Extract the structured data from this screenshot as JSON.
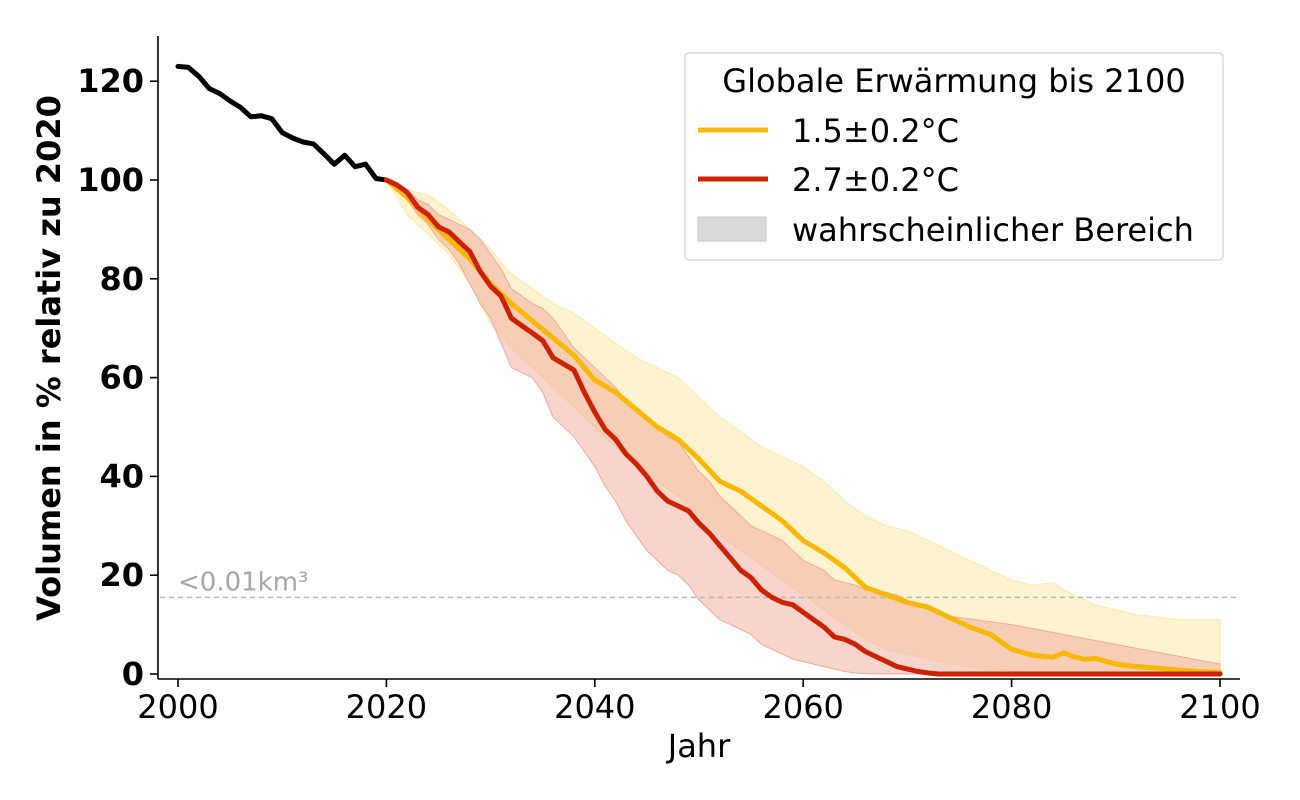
{
  "chart_data": {
    "type": "line",
    "xlabel": "Jahr",
    "ylabel": "Volumen in % relativ zu 2020",
    "xlim": [
      2000,
      2100
    ],
    "ylim": [
      0,
      128
    ],
    "x_ticks": [
      2000,
      2020,
      2040,
      2060,
      2080,
      2100
    ],
    "y_ticks": [
      0,
      20,
      40,
      60,
      80,
      100,
      120
    ],
    "grid": false,
    "legend": {
      "title": "Globale Erwärmung bis 2100",
      "placement": "top-right",
      "entries": [
        "1.5±0.2°C",
        "2.7±0.2°C",
        "wahrscheinlicher Bereich"
      ]
    },
    "threshold": {
      "y": 15.5,
      "label": "<0.01km³",
      "color": "#b3b3b3"
    },
    "series": [
      {
        "color": "#000000",
        "x": [
          2000,
          2001,
          2002,
          2003,
          2004,
          2005,
          2006,
          2007,
          2008,
          2009,
          2010,
          2011,
          2012,
          2013,
          2014,
          2015,
          2016,
          2017,
          2018,
          2019,
          2020
        ],
        "y": [
          123,
          122.8,
          121,
          118.5,
          117.5,
          116,
          114.7,
          112.8,
          113,
          112.4,
          109.6,
          108.5,
          107.7,
          107.3,
          105.3,
          103.2,
          105,
          102.7,
          103.2,
          100.3,
          100
        ]
      },
      {
        "name": "1.5±0.2°C",
        "color": "#f7b800",
        "band_color": "#fde9ab",
        "x": [
          2020,
          2022,
          2024,
          2026,
          2028,
          2030,
          2032,
          2034,
          2036,
          2038,
          2040,
          2042,
          2044,
          2046,
          2048,
          2050,
          2052,
          2054,
          2056,
          2058,
          2060,
          2062,
          2064,
          2066,
          2068,
          2070,
          2072,
          2074,
          2076,
          2078,
          2080,
          2082,
          2084,
          2085,
          2086,
          2087,
          2088,
          2090,
          2092,
          2094,
          2096,
          2098,
          2100
        ],
        "y": [
          100,
          96.5,
          92,
          88,
          84,
          79,
          75,
          71.5,
          68,
          64.5,
          59.5,
          57,
          53.5,
          50,
          47.5,
          43.5,
          39,
          37,
          34,
          31,
          27,
          24.5,
          21.5,
          17.5,
          16,
          14.5,
          13.5,
          11.5,
          9.5,
          8,
          5,
          3.8,
          3.4,
          4.3,
          3.5,
          3,
          3.2,
          2,
          1.5,
          1.2,
          0.8,
          0.5,
          0.3
        ],
        "lower": [
          100,
          93,
          89,
          85,
          79,
          71,
          66,
          62,
          58,
          54,
          50,
          46,
          42,
          39,
          36,
          32,
          28,
          25,
          22,
          19,
          16,
          13,
          10,
          7,
          5,
          4,
          3,
          2,
          1.5,
          1,
          0.6,
          0.3,
          0.2,
          0.2,
          0.1,
          0.1,
          0.1,
          0.1,
          0,
          0,
          0,
          0,
          0
        ],
        "upper": [
          100,
          98,
          97,
          94,
          90,
          86,
          81,
          78,
          75,
          73,
          70,
          67,
          64,
          62,
          60,
          56,
          52,
          49,
          46,
          44,
          42,
          39,
          35,
          32,
          30,
          29,
          27,
          25,
          23,
          21,
          19,
          18,
          18.5,
          17,
          16,
          15,
          14,
          13,
          12,
          11.5,
          11,
          11,
          11
        ]
      },
      {
        "name": "2.7±0.2°C",
        "color": "#cc2200",
        "band_color": "#f0aa99",
        "x": [
          2020,
          2021,
          2022,
          2023,
          2024,
          2025,
          2026,
          2027,
          2028,
          2029,
          2030,
          2031,
          2032,
          2034,
          2035,
          2036,
          2038,
          2039,
          2040,
          2041,
          2042,
          2043,
          2044,
          2045,
          2046,
          2047,
          2048,
          2049,
          2050,
          2051,
          2052,
          2053,
          2054,
          2055,
          2056,
          2057,
          2058,
          2059,
          2060,
          2062,
          2063,
          2064,
          2065,
          2066,
          2067,
          2068,
          2069,
          2070,
          2071,
          2072,
          2073,
          2080,
          2090,
          2100
        ],
        "y": [
          100,
          99,
          97.5,
          94.5,
          93,
          90.5,
          89.5,
          87.5,
          85.5,
          81.5,
          78.5,
          76.5,
          72,
          69,
          67.5,
          64,
          61.5,
          57,
          53,
          49.5,
          47.5,
          44.5,
          42.5,
          40,
          37,
          35,
          34,
          33,
          30.5,
          28.5,
          26,
          23.5,
          21,
          19.5,
          17,
          15.5,
          14.5,
          14,
          12.5,
          9.5,
          7.5,
          7,
          6,
          4.5,
          3.5,
          2.5,
          1.5,
          1,
          0.5,
          0.2,
          0,
          0,
          0,
          0
        ],
        "lower": [
          100,
          98,
          96,
          93,
          91,
          88,
          86,
          83,
          79,
          75,
          72,
          67,
          62,
          60,
          57,
          52,
          48,
          45,
          42,
          38,
          35,
          31,
          28,
          25,
          23,
          21,
          20,
          18,
          15,
          13,
          11,
          10,
          9,
          8,
          6,
          5,
          4,
          3,
          2.5,
          1.5,
          1,
          0.5,
          0.2,
          0.1,
          0,
          0,
          0,
          0,
          0,
          0,
          0,
          0,
          0,
          0
        ],
        "upper": [
          100,
          99.5,
          98,
          96,
          95,
          93,
          92,
          91,
          90,
          88,
          85,
          82,
          78,
          75,
          74,
          72,
          66,
          64,
          62,
          60,
          58,
          55,
          53,
          52,
          50,
          48,
          47,
          44,
          41,
          39,
          36,
          34,
          32,
          30,
          29,
          28,
          27,
          25,
          23,
          21,
          19,
          18.5,
          18,
          17,
          17,
          16.5,
          16,
          15,
          14,
          13,
          12,
          10,
          6,
          2
        ]
      }
    ]
  }
}
